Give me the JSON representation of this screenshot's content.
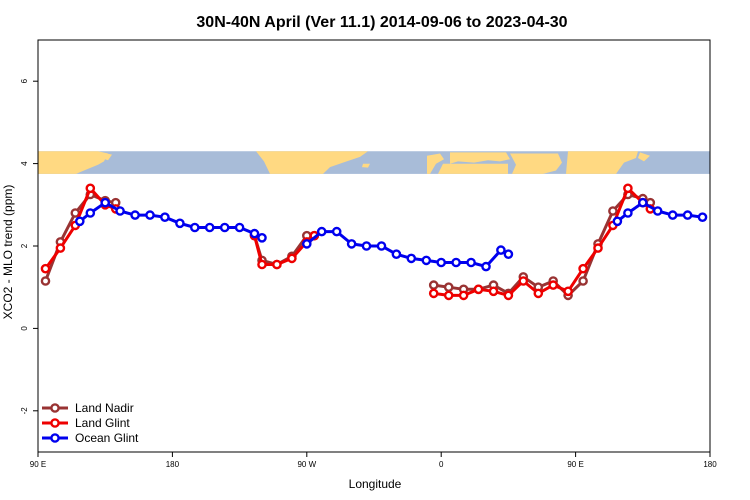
{
  "chart_data": {
    "type": "line",
    "title": "30N-40N April (Ver 11.1)   2014-09-06 to 2023-04-30",
    "xlabel": "Longitude",
    "ylabel": "XCO2 - MLO trend (ppm)",
    "xlim": [
      90,
      540
    ],
    "ylim": [
      -3,
      7
    ],
    "x_ticks": [
      {
        "value": 90,
        "label": "90 E"
      },
      {
        "value": 180,
        "label": "180"
      },
      {
        "value": 270,
        "label": "90 W"
      },
      {
        "value": 360,
        "label": "0"
      },
      {
        "value": 450,
        "label": "90 E"
      },
      {
        "value": 540,
        "label": "180"
      }
    ],
    "y_ticks": [
      {
        "value": -2,
        "label": "-2"
      },
      {
        "value": 0,
        "label": "0"
      },
      {
        "value": 2,
        "label": "2"
      },
      {
        "value": 4,
        "label": "4"
      },
      {
        "value": 6,
        "label": "6"
      }
    ],
    "grid": false,
    "legend_position": "bottom-left",
    "map_band": {
      "y_range": [
        3.75,
        4.3
      ],
      "ocean_color": "#a8bcd8",
      "land_color": "#ffd982"
    },
    "series": [
      {
        "name": "Land Nadir",
        "color": "#993333",
        "segments": [
          [
            [
              95,
              1.15
            ],
            [
              105,
              2.1
            ],
            [
              115,
              2.8
            ],
            [
              125,
              3.25
            ],
            [
              135,
              3.1
            ],
            [
              142,
              3.05
            ]
          ],
          [
            [
              235,
              2.25
            ],
            [
              240,
              1.65
            ],
            [
              250,
              1.55
            ],
            [
              260,
              1.75
            ],
            [
              270,
              2.25
            ],
            [
              275,
              2.25
            ]
          ],
          [
            [
              355,
              1.05
            ],
            [
              365,
              1.0
            ],
            [
              375,
              0.95
            ],
            [
              385,
              0.95
            ],
            [
              395,
              1.05
            ],
            [
              405,
              0.85
            ],
            [
              415,
              1.25
            ],
            [
              425,
              1.0
            ],
            [
              435,
              1.15
            ],
            [
              445,
              0.8
            ],
            [
              455,
              1.15
            ],
            [
              465,
              2.05
            ],
            [
              475,
              2.85
            ],
            [
              485,
              3.25
            ],
            [
              495,
              3.15
            ],
            [
              500,
              3.05
            ]
          ]
        ]
      },
      {
        "name": "Land Glint",
        "color": "#ee0000",
        "segments": [
          [
            [
              95,
              1.45
            ],
            [
              105,
              1.95
            ],
            [
              115,
              2.5
            ],
            [
              125,
              3.4
            ],
            [
              135,
              3.0
            ],
            [
              142,
              2.9
            ]
          ],
          [
            [
              235,
              2.25
            ],
            [
              240,
              1.55
            ],
            [
              250,
              1.55
            ],
            [
              260,
              1.7
            ],
            [
              270,
              2.1
            ],
            [
              275,
              2.25
            ]
          ],
          [
            [
              355,
              0.85
            ],
            [
              365,
              0.8
            ],
            [
              375,
              0.8
            ],
            [
              385,
              0.95
            ],
            [
              395,
              0.9
            ],
            [
              405,
              0.8
            ],
            [
              415,
              1.15
            ],
            [
              425,
              0.85
            ],
            [
              435,
              1.05
            ],
            [
              445,
              0.9
            ],
            [
              455,
              1.45
            ],
            [
              465,
              1.95
            ],
            [
              475,
              2.5
            ],
            [
              485,
              3.4
            ],
            [
              495,
              3.05
            ],
            [
              500,
              2.9
            ]
          ]
        ]
      },
      {
        "name": "Ocean Glint",
        "color": "#0000ee",
        "segments": [
          [
            [
              118,
              2.6
            ],
            [
              125,
              2.8
            ],
            [
              135,
              3.05
            ],
            [
              145,
              2.85
            ],
            [
              155,
              2.75
            ],
            [
              165,
              2.75
            ],
            [
              175,
              2.7
            ],
            [
              185,
              2.55
            ],
            [
              195,
              2.45
            ],
            [
              205,
              2.45
            ],
            [
              215,
              2.45
            ],
            [
              225,
              2.45
            ],
            [
              235,
              2.3
            ],
            [
              240,
              2.2
            ]
          ],
          [
            [
              270,
              2.05
            ],
            [
              280,
              2.35
            ],
            [
              290,
              2.35
            ],
            [
              300,
              2.05
            ],
            [
              310,
              2.0
            ],
            [
              320,
              2.0
            ],
            [
              330,
              1.8
            ],
            [
              340,
              1.7
            ],
            [
              350,
              1.65
            ],
            [
              360,
              1.6
            ],
            [
              370,
              1.6
            ],
            [
              380,
              1.6
            ],
            [
              390,
              1.5
            ],
            [
              400,
              1.9
            ],
            [
              405,
              1.8
            ]
          ],
          [
            [
              478,
              2.6
            ],
            [
              485,
              2.8
            ],
            [
              495,
              3.05
            ],
            [
              505,
              2.85
            ],
            [
              515,
              2.75
            ],
            [
              525,
              2.75
            ],
            [
              535,
              2.7
            ]
          ]
        ]
      }
    ]
  }
}
